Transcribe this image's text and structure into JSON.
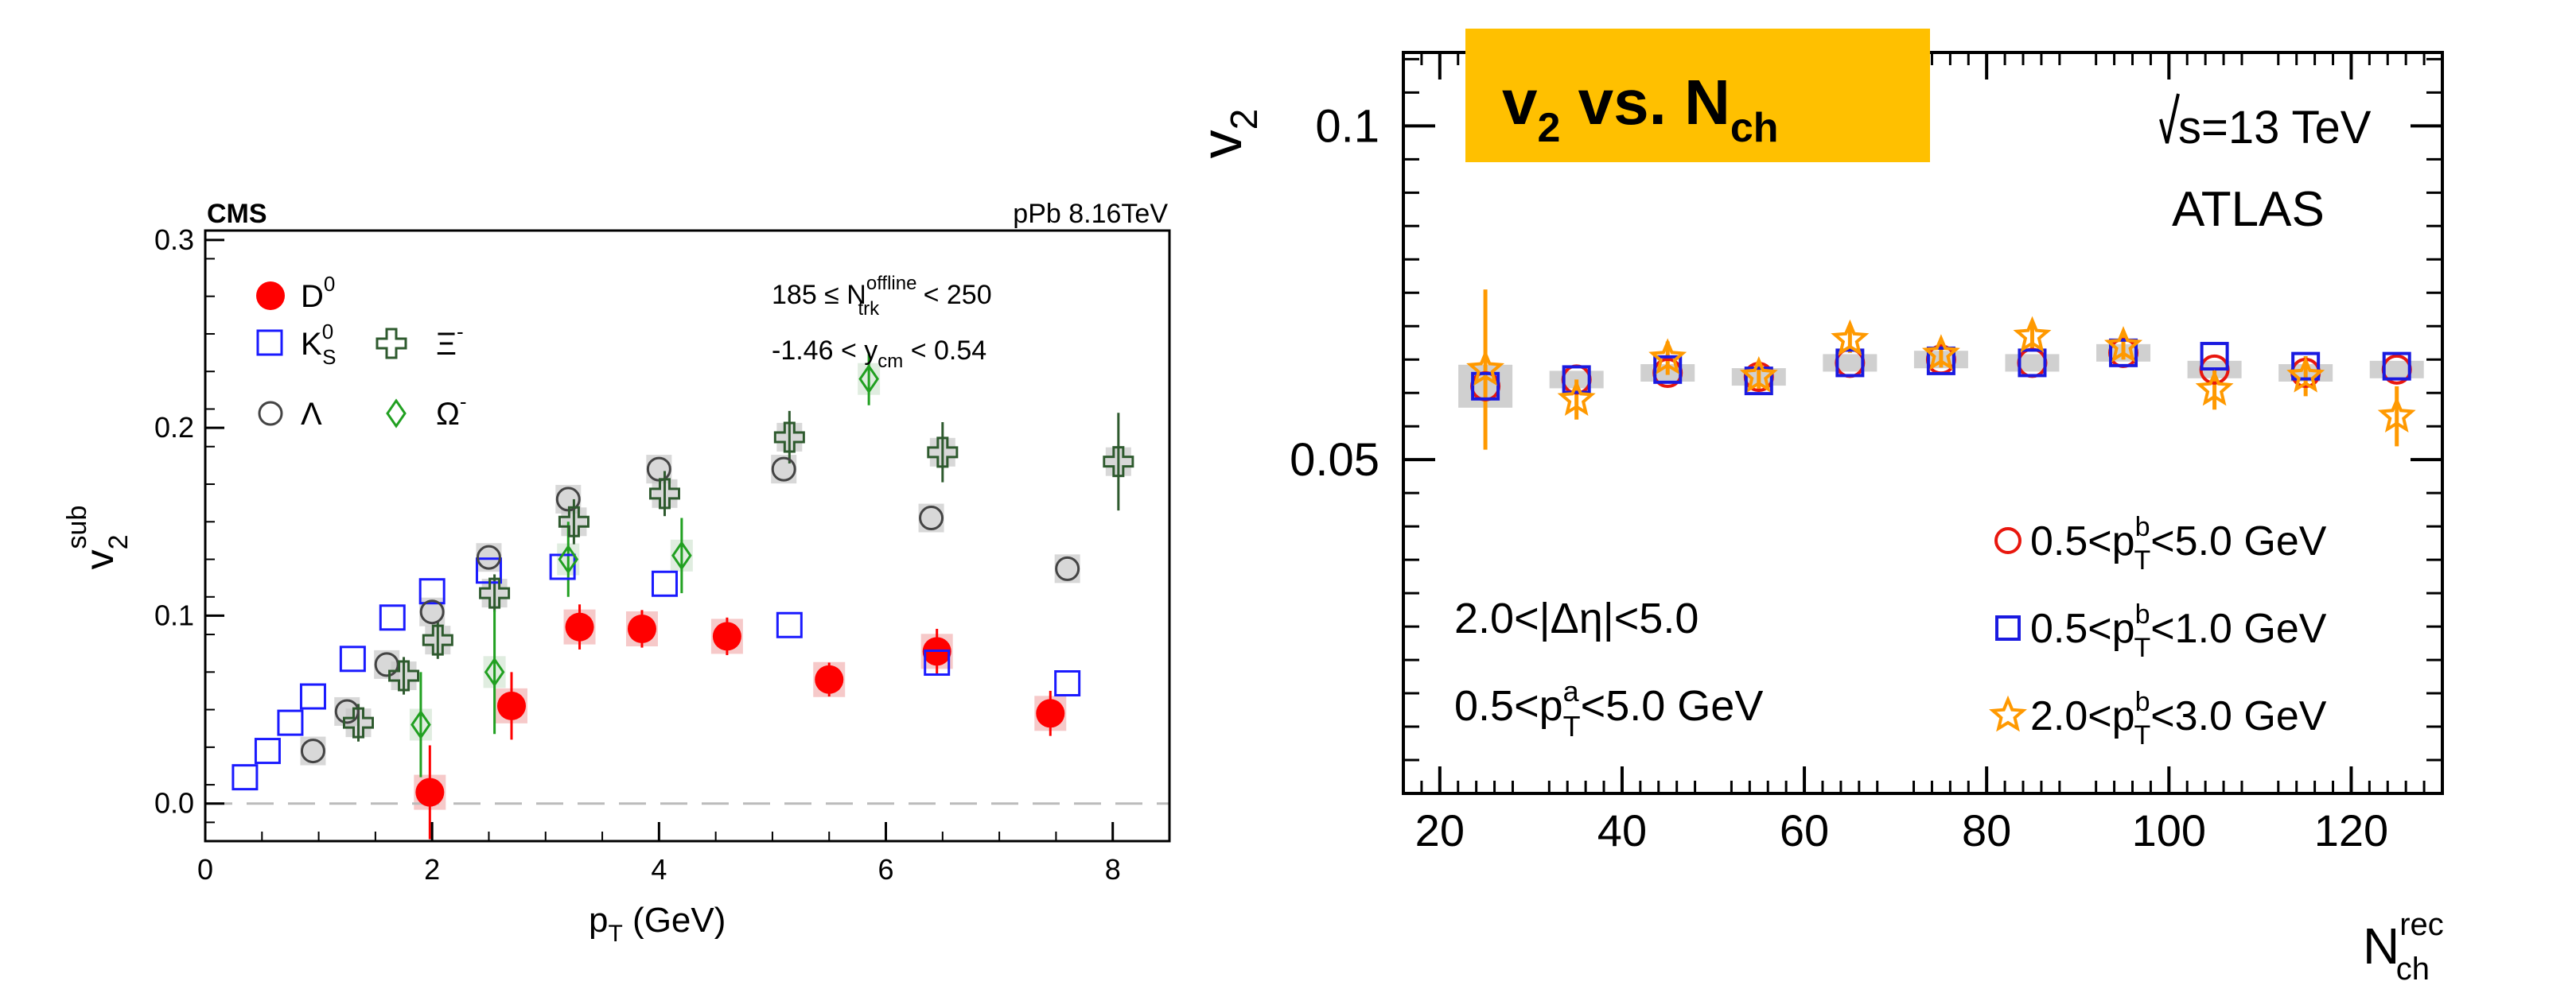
{
  "colors": {
    "d0": "#ff0000",
    "ks0": "#1a1aff",
    "lambda": "#444444",
    "xi": "#2e5a2e",
    "omega": "#21a021",
    "atlas_red": "#e8170e",
    "atlas_blue": "#1a1ae0",
    "atlas_orange": "#ff9900",
    "banner": "#ffc000",
    "syst": "#c8c8c8",
    "dash": "#bbbbbb"
  },
  "chart_data": [
    {
      "type": "scatter",
      "experiment": "CMS",
      "title_left": "CMS",
      "title_right": "pPb 8.16TeV",
      "xlabel": "p",
      "xlabel_sub": "T",
      "xlabel_tail": " (GeV)",
      "ylabel": "v",
      "ylabel_sub": "2",
      "ylabel_sup": "sub",
      "xlim": [
        0,
        8.5
      ],
      "ylim": [
        -0.02,
        0.305
      ],
      "xticks": [
        0,
        2,
        4,
        6,
        8
      ],
      "yticks": [
        0.0,
        0.1,
        0.2,
        0.3
      ],
      "xtick_labels": [
        "0",
        "2",
        "4",
        "6",
        "8"
      ],
      "ytick_labels": [
        "0.0",
        "0.1",
        "0.2",
        "0.3"
      ],
      "annotations": {
        "line1_pre": "185 ≤ N",
        "line1_sup": "offline",
        "line1_sub": "trk",
        "line1_post": " < 250",
        "line2_pre": "-1.46 < y",
        "line2_sub": "cm",
        "line2_post": " < 0.54"
      },
      "legend": {
        "d0": {
          "label": "D",
          "sup": "0"
        },
        "ks0": {
          "label": "K",
          "sup": "0",
          "sub": "S"
        },
        "xi": {
          "label": "Ξ",
          "sup": "-"
        },
        "lambda": {
          "label": "Λ"
        },
        "omega": {
          "label": "Ω",
          "sup": "-"
        }
      },
      "series": [
        {
          "name": "D0",
          "key": "d0",
          "marker": "filled-circle",
          "x": [
            1.98,
            2.7,
            3.3,
            3.85,
            4.6,
            5.5,
            6.45,
            7.45
          ],
          "y": [
            0.006,
            0.052,
            0.094,
            0.093,
            0.089,
            0.066,
            0.081,
            0.048
          ],
          "err": [
            0.025,
            0.018,
            0.012,
            0.01,
            0.01,
            0.009,
            0.012,
            0.012
          ]
        },
        {
          "name": "KS0",
          "key": "ks0",
          "marker": "open-square",
          "x": [
            0.35,
            0.55,
            0.75,
            0.95,
            1.3,
            1.65,
            2.0,
            2.5,
            3.15,
            4.05,
            5.15,
            6.45,
            7.6
          ],
          "y": [
            0.014,
            0.028,
            0.043,
            0.057,
            0.077,
            0.099,
            0.113,
            0.124,
            0.126,
            0.117,
            0.095,
            0.075,
            0.064
          ],
          "err": [
            0,
            0,
            0,
            0,
            0,
            0,
            0,
            0,
            0,
            0,
            0,
            0,
            0
          ]
        },
        {
          "name": "Lambda",
          "key": "lambda",
          "marker": "open-circle",
          "x": [
            0.95,
            1.25,
            1.6,
            2.0,
            2.5,
            3.2,
            4.0,
            5.1,
            6.4,
            7.6
          ],
          "y": [
            0.028,
            0.049,
            0.074,
            0.102,
            0.131,
            0.162,
            0.178,
            0.178,
            0.152,
            0.125
          ],
          "err": [
            0,
            0,
            0,
            0,
            0,
            0,
            0,
            0,
            0,
            0
          ]
        },
        {
          "name": "Xi-",
          "key": "xi",
          "marker": "open-cross",
          "x": [
            1.35,
            1.75,
            2.05,
            2.55,
            3.25,
            4.05,
            5.15,
            6.5,
            8.05
          ],
          "y": [
            0.043,
            0.068,
            0.087,
            0.112,
            0.15,
            0.165,
            0.195,
            0.187,
            0.182
          ],
          "err": [
            0.01,
            0.01,
            0.01,
            0.01,
            0.012,
            0.012,
            0.014,
            0.016,
            0.026
          ]
        },
        {
          "name": "Omega-",
          "key": "omega",
          "marker": "open-diamond",
          "x": [
            1.9,
            2.55,
            3.2,
            4.2,
            5.85
          ],
          "y": [
            0.042,
            0.07,
            0.13,
            0.132,
            0.226
          ],
          "err": [
            0.028,
            0.033,
            0.02,
            0.02,
            0.014
          ]
        }
      ]
    },
    {
      "type": "scatter",
      "experiment": "ATLAS",
      "banner": {
        "pre": "v",
        "sub1": "2",
        "mid": " vs. N",
        "sub2": "ch"
      },
      "energy": "s=13 TeV",
      "atlas_label": "ATLAS",
      "ylabel": "v",
      "ylabel_sub": "2",
      "xlabel": "N",
      "xlabel_sup": "rec",
      "xlabel_sub": "ch",
      "xlim": [
        16,
        130
      ],
      "ylim": [
        0.0,
        0.111
      ],
      "xticks": [
        20,
        40,
        60,
        80,
        100,
        120
      ],
      "yticks": [
        0.05,
        0.1
      ],
      "xtick_labels": [
        "20",
        "40",
        "60",
        "80",
        "100",
        "120"
      ],
      "ytick_labels": [
        "0.05",
        "0.1"
      ],
      "cuts": {
        "eta": "2.0<|Δη|<5.0",
        "pta_pre": "0.5<p",
        "pta_sup": "a",
        "pta_sub": "T",
        "pta_post": "<5.0 GeV"
      },
      "legend": [
        {
          "key": "atlas_red",
          "marker": "open-circle",
          "pre": "0.5<p",
          "sup": "b",
          "sub": "T",
          "post": "<5.0 GeV"
        },
        {
          "key": "atlas_blue",
          "marker": "open-square",
          "pre": "0.5<p",
          "sup": "b",
          "sub": "T",
          "post": "<1.0 GeV"
        },
        {
          "key": "atlas_orange",
          "marker": "open-star",
          "pre": "2.0<p",
          "sup": "b",
          "sub": "T",
          "post": "<3.0 GeV"
        }
      ],
      "x": [
        25,
        35,
        45,
        55,
        65,
        75,
        85,
        95,
        105,
        115,
        125
      ],
      "series": [
        {
          "name": "0.5<pTb<5.0 GeV",
          "key": "atlas_red",
          "marker": "open-circle",
          "y": [
            0.061,
            0.062,
            0.063,
            0.0624,
            0.0645,
            0.065,
            0.0645,
            0.066,
            0.0635,
            0.063,
            0.0635
          ]
        },
        {
          "name": "0.5<pTb<1.0 GeV",
          "key": "atlas_blue",
          "marker": "open-square",
          "y": [
            0.061,
            0.062,
            0.0635,
            0.0618,
            0.0645,
            0.0648,
            0.0645,
            0.066,
            0.0655,
            0.064,
            0.064
          ]
        },
        {
          "name": "2.0<pTb<3.0 GeV",
          "key": "atlas_orange",
          "marker": "open-star",
          "y": [
            0.0635,
            0.059,
            0.0652,
            0.0625,
            0.068,
            0.0658,
            0.0685,
            0.067,
            0.0605,
            0.0625,
            0.0565
          ],
          "err": [
            0.012,
            0.003,
            0.0025,
            0.0022,
            0.002,
            0.002,
            0.002,
            0.002,
            0.003,
            0.003,
            0.0045
          ]
        }
      ]
    }
  ]
}
